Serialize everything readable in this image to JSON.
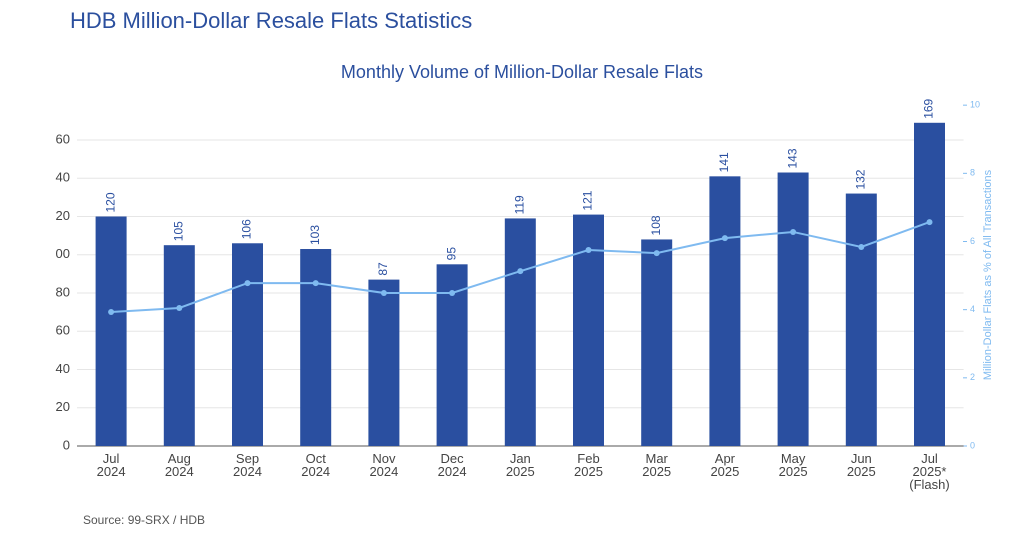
{
  "header": {
    "title": "HDB Million-Dollar Resale Flats Statistics"
  },
  "chart_data": {
    "type": "bar-line",
    "title": "Monthly Volume of Million-Dollar Resale Flats",
    "categories": [
      [
        "Jul",
        "2024"
      ],
      [
        "Aug",
        "2024"
      ],
      [
        "Sep",
        "2024"
      ],
      [
        "Oct",
        "2024"
      ],
      [
        "Nov",
        "2024"
      ],
      [
        "Dec",
        "2024"
      ],
      [
        "Jan",
        "2025"
      ],
      [
        "Feb",
        "2025"
      ],
      [
        "Mar",
        "2025"
      ],
      [
        "Apr",
        "2025"
      ],
      [
        "May",
        "2025"
      ],
      [
        "Jun",
        "2025"
      ],
      [
        "Jul",
        "2025*",
        "(Flash)"
      ]
    ],
    "series": [
      {
        "name": "Million-Dollar Resale Flats",
        "type": "bar",
        "color": "#2a4fa0",
        "values": [
          120,
          105,
          106,
          103,
          87,
          95,
          119,
          121,
          108,
          141,
          143,
          132,
          169
        ]
      },
      {
        "name": "Million-Dollar Flats as % of All Transactions",
        "type": "line",
        "axis": "y2",
        "color": "#7fbaf0",
        "values": [
          3.93,
          4.05,
          4.78,
          4.78,
          4.49,
          4.49,
          5.13,
          5.75,
          5.66,
          6.1,
          6.28,
          5.84,
          6.57
        ]
      }
    ],
    "ylim": [
      0,
      180
    ],
    "yticks": [
      0,
      {
        "value": 20,
        "label": "20"
      },
      {
        "value": 40,
        "label": "40"
      },
      {
        "value": 60,
        "label": "60"
      },
      {
        "value": 80,
        "label": "80"
      },
      {
        "value": 100,
        "label": "00"
      },
      {
        "value": 120,
        "label": "20"
      },
      {
        "value": 140,
        "label": "40"
      },
      {
        "value": 160,
        "label": "60"
      }
    ],
    "y2lim": [
      0,
      10.1
    ],
    "y2ticks": [
      0,
      2,
      4,
      6,
      8,
      10
    ],
    "y2label": "Million-Dollar Flats as % of All Transactions",
    "grid": true,
    "source": "Source: 99-SRX / HDB"
  }
}
